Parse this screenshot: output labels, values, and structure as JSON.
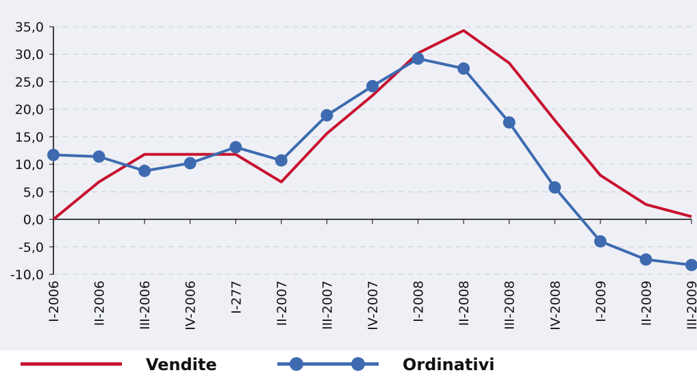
{
  "chart_data": {
    "type": "line",
    "categories": [
      "I-2006",
      "II-2006",
      "III-2006",
      "IV-2006",
      "I-277",
      "II-2007",
      "III-2007",
      "IV-2007",
      "I-2008",
      "II-2008",
      "III-2008",
      "IV-2008",
      "I-2009",
      "II-2009",
      "III-2009"
    ],
    "series": [
      {
        "name": "Vendite",
        "color": "#c8102e",
        "marker": false,
        "values": [
          0,
          6.8,
          11.8,
          11.8,
          11.8,
          6.8,
          15.6,
          22.5,
          30.2,
          34.3,
          28.4,
          18.0,
          8.0,
          2.7,
          0.5
        ]
      },
      {
        "name": "Ordinativi",
        "color": "#3e6bb0",
        "marker": true,
        "values": [
          11.7,
          11.4,
          8.8,
          10.2,
          13.1,
          10.7,
          18.9,
          24.2,
          29.2,
          27.4,
          17.6,
          5.8,
          -4.0,
          -7.3,
          -8.3
        ]
      }
    ],
    "ylim": [
      -10,
      35
    ],
    "yticks": [
      {
        "value": -10,
        "label": "-10,0"
      },
      {
        "value": -5,
        "label": "-5,0"
      },
      {
        "value": 0,
        "label": "0,0"
      },
      {
        "value": 5,
        "label": "5,0"
      },
      {
        "value": 10,
        "label": "10,0"
      },
      {
        "value": 15,
        "label": "15,0"
      },
      {
        "value": 20,
        "label": "20,0"
      },
      {
        "value": 25,
        "label": "25,0"
      },
      {
        "value": 30,
        "label": "30,0"
      },
      {
        "value": 35,
        "label": "35,0"
      }
    ],
    "grid": true,
    "legend": "bottom"
  }
}
